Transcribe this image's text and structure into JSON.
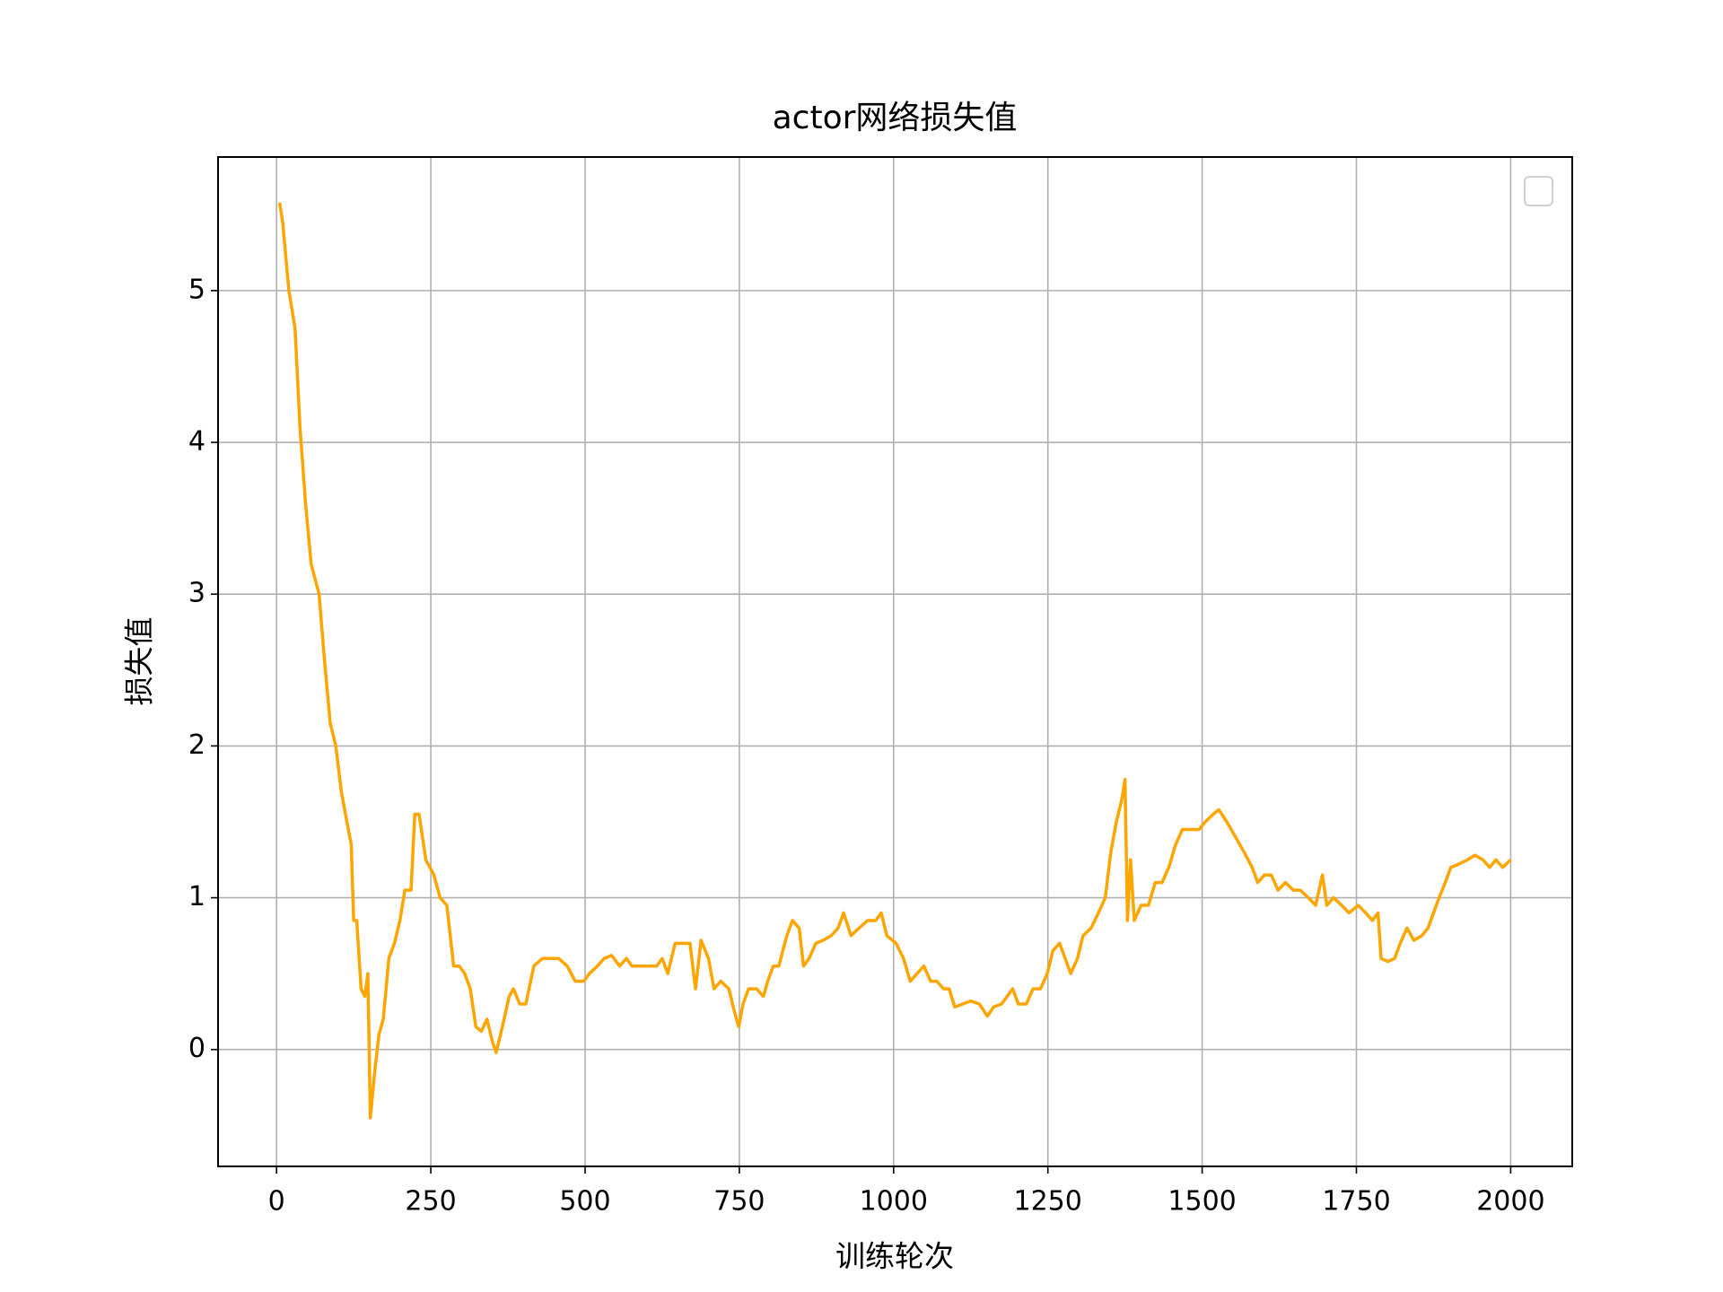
{
  "chart_data": {
    "type": "line",
    "title": "actor网络损失值",
    "x_label": "训练轮次",
    "y_label": "损失值",
    "x": [
      5,
      10,
      20,
      30,
      38,
      47,
      56,
      69,
      78,
      87,
      96,
      105,
      114,
      121,
      125,
      130,
      137,
      143,
      148,
      152,
      159,
      166,
      173,
      182,
      191,
      200,
      208,
      218,
      224,
      231,
      242,
      255,
      265,
      276,
      287,
      296,
      305,
      314,
      323,
      332,
      341,
      350,
      356,
      366,
      377,
      384,
      394,
      404,
      417,
      431,
      444,
      457,
      471,
      484,
      498,
      507,
      520,
      531,
      543,
      556,
      567,
      576,
      588,
      601,
      616,
      625,
      634,
      646,
      661,
      670,
      679,
      688,
      700,
      709,
      720,
      733,
      742,
      749,
      756,
      765,
      778,
      789,
      796,
      805,
      814,
      827,
      836,
      847,
      854,
      863,
      874,
      886,
      899,
      910,
      919,
      931,
      944,
      958,
      971,
      980,
      989,
      1004,
      1016,
      1027,
      1038,
      1049,
      1060,
      1070,
      1081,
      1090,
      1099,
      1112,
      1125,
      1139,
      1152,
      1162,
      1175,
      1184,
      1193,
      1202,
      1215,
      1226,
      1238,
      1249,
      1258,
      1269,
      1278,
      1287,
      1298,
      1307,
      1320,
      1332,
      1343,
      1352,
      1361,
      1370,
      1375,
      1379,
      1384,
      1390,
      1401,
      1413,
      1424,
      1435,
      1446,
      1457,
      1468,
      1482,
      1495,
      1505,
      1518,
      1527,
      1540,
      1554,
      1568,
      1581,
      1590,
      1601,
      1612,
      1623,
      1635,
      1648,
      1659,
      1672,
      1684,
      1695,
      1702,
      1713,
      1726,
      1738,
      1753,
      1765,
      1776,
      1785,
      1790,
      1801,
      1812,
      1821,
      1832,
      1843,
      1856,
      1866,
      1875,
      1884,
      1894,
      1903,
      1915,
      1930,
      1942,
      1955,
      1966,
      1976,
      1987,
      2000
    ],
    "series": [
      {
        "color": "#ffa500",
        "values": [
          5.58,
          5.45,
          5.0,
          4.75,
          4.1,
          3.6,
          3.2,
          3.0,
          2.55,
          2.15,
          2.0,
          1.7,
          1.5,
          1.35,
          0.85,
          0.85,
          0.4,
          0.35,
          0.5,
          -0.45,
          -0.15,
          0.1,
          0.2,
          0.6,
          0.7,
          0.85,
          1.05,
          1.05,
          1.55,
          1.55,
          1.25,
          1.15,
          1.0,
          0.95,
          0.55,
          0.55,
          0.5,
          0.4,
          0.15,
          0.12,
          0.2,
          0.05,
          -0.02,
          0.15,
          0.35,
          0.4,
          0.3,
          0.3,
          0.55,
          0.6,
          0.6,
          0.6,
          0.55,
          0.45,
          0.45,
          0.5,
          0.55,
          0.6,
          0.62,
          0.55,
          0.6,
          0.55,
          0.55,
          0.55,
          0.55,
          0.6,
          0.5,
          0.7,
          0.7,
          0.7,
          0.4,
          0.72,
          0.6,
          0.4,
          0.45,
          0.4,
          0.25,
          0.15,
          0.3,
          0.4,
          0.4,
          0.35,
          0.45,
          0.55,
          0.55,
          0.75,
          0.85,
          0.8,
          0.55,
          0.6,
          0.7,
          0.72,
          0.75,
          0.8,
          0.9,
          0.75,
          0.8,
          0.85,
          0.85,
          0.9,
          0.75,
          0.7,
          0.6,
          0.45,
          0.5,
          0.55,
          0.45,
          0.45,
          0.4,
          0.4,
          0.28,
          0.3,
          0.32,
          0.3,
          0.22,
          0.28,
          0.3,
          0.35,
          0.4,
          0.3,
          0.3,
          0.4,
          0.4,
          0.5,
          0.65,
          0.7,
          0.6,
          0.5,
          0.6,
          0.75,
          0.8,
          0.9,
          1.0,
          1.3,
          1.5,
          1.65,
          1.78,
          0.85,
          1.25,
          0.85,
          0.95,
          0.95,
          1.1,
          1.1,
          1.2,
          1.35,
          1.45,
          1.45,
          1.45,
          1.5,
          1.55,
          1.58,
          1.5,
          1.4,
          1.3,
          1.2,
          1.1,
          1.15,
          1.15,
          1.05,
          1.1,
          1.05,
          1.05,
          1.0,
          0.95,
          1.15,
          0.95,
          1.0,
          0.95,
          0.9,
          0.95,
          0.9,
          0.85,
          0.9,
          0.6,
          0.58,
          0.6,
          0.7,
          0.8,
          0.72,
          0.75,
          0.8,
          0.9,
          1.0,
          1.1,
          1.2,
          1.22,
          1.25,
          1.28,
          1.25,
          1.2,
          1.25,
          1.2,
          1.25
        ]
      }
    ],
    "xlim": [
      -94.75,
      2099.75
    ],
    "ylim": [
      -0.77,
      5.88
    ],
    "xticks": [
      0,
      250,
      500,
      750,
      1000,
      1250,
      1500,
      1750,
      2000
    ],
    "yticks": [
      0,
      1,
      2,
      3,
      4,
      5
    ],
    "grid": true
  }
}
